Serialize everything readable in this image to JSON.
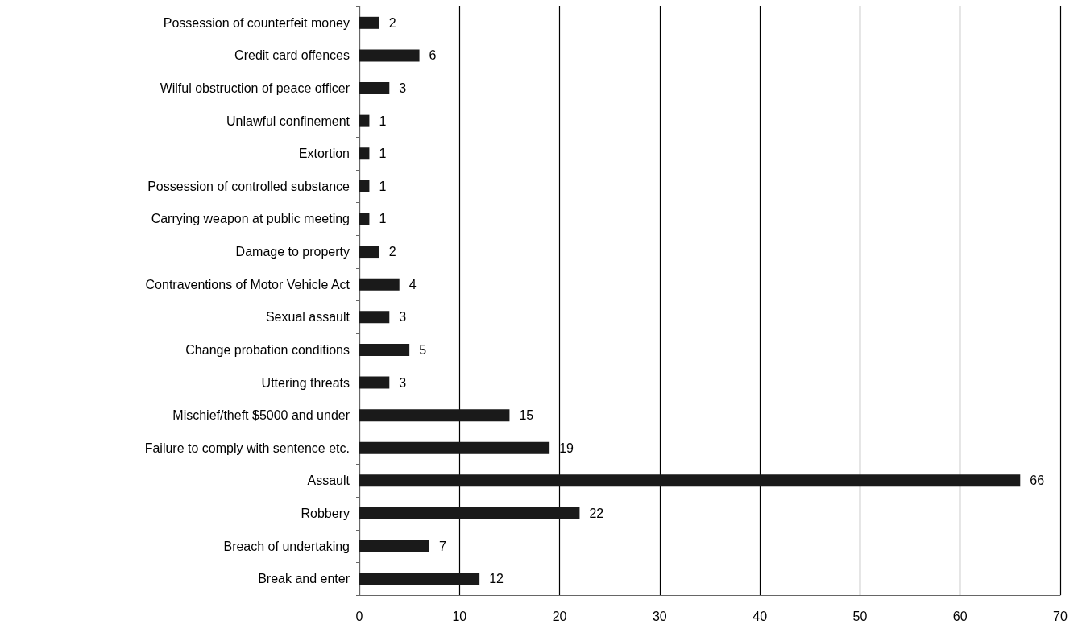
{
  "chart_data": {
    "type": "bar",
    "orientation": "horizontal",
    "categories": [
      "Possession of counterfeit money",
      "Credit card offences",
      "Wilful obstruction of peace officer",
      "Unlawful confinement",
      "Extortion",
      "Possession of controlled substance",
      "Carrying weapon at public meeting",
      "Damage to property",
      "Contraventions of Motor Vehicle Act",
      "Sexual assault",
      "Change probation conditions",
      "Uttering threats",
      "Mischief/theft $5000 and under",
      "Failure to comply with sentence etc.",
      "Assault",
      "Robbery",
      "Breach of undertaking",
      "Break and enter"
    ],
    "values": [
      2,
      6,
      3,
      1,
      1,
      1,
      1,
      2,
      4,
      3,
      5,
      3,
      15,
      19,
      66,
      22,
      7,
      12
    ],
    "color": "#1a1a1a",
    "xlim": [
      0,
      70
    ],
    "xticks": [
      0,
      10,
      20,
      30,
      40,
      50,
      60,
      70
    ],
    "grid": "x",
    "data_labels": true
  }
}
